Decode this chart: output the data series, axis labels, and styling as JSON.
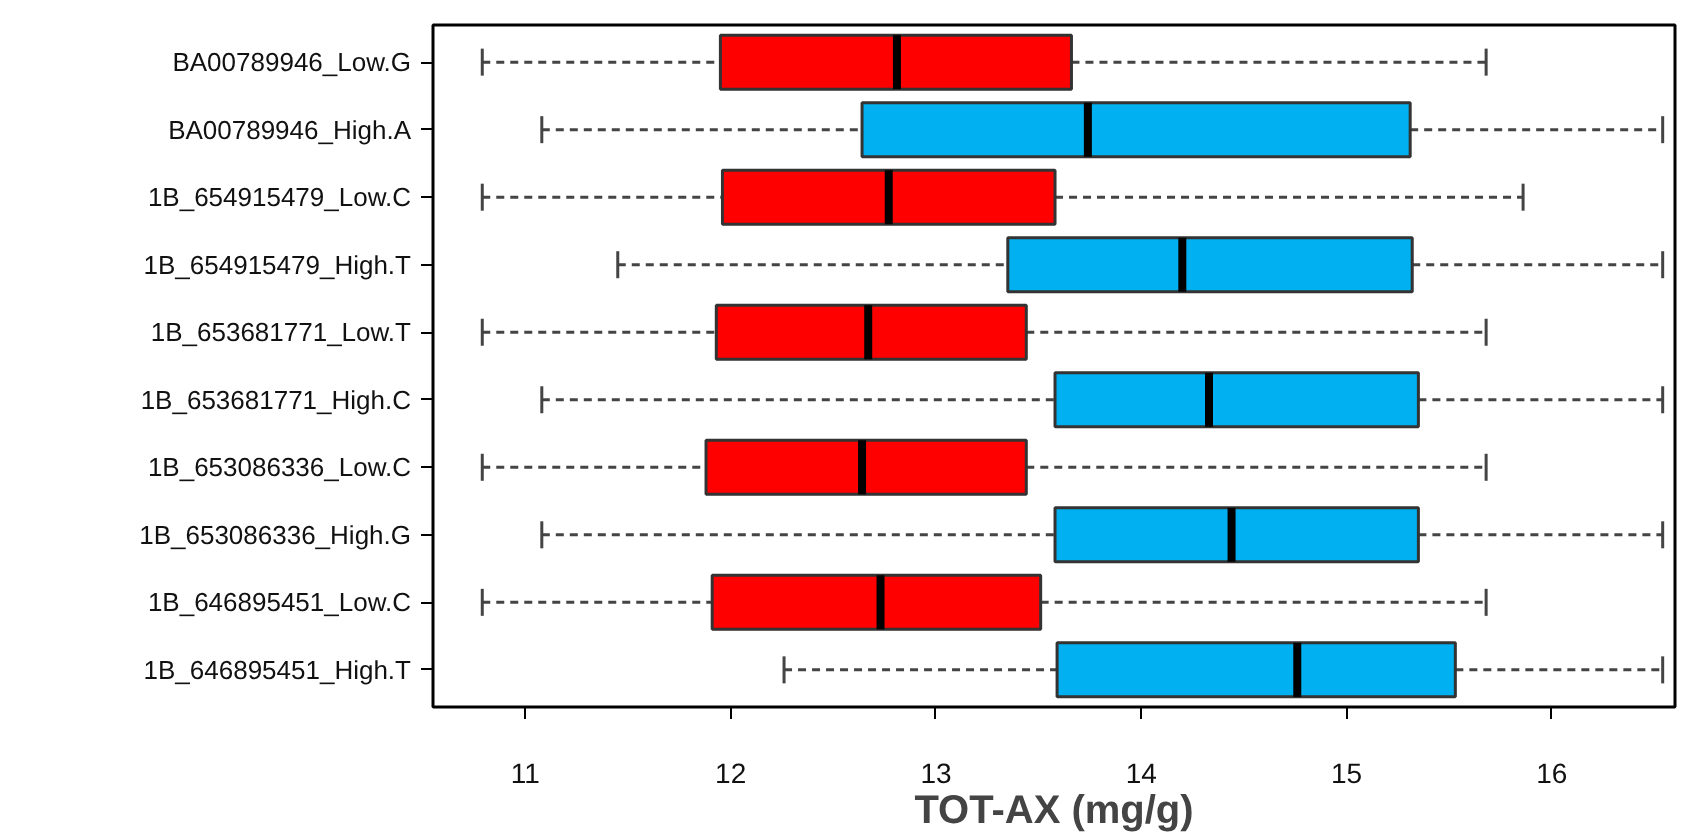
{
  "chart_data": {
    "type": "box",
    "orientation": "horizontal",
    "xlabel": "TOT-AX (mg/g)",
    "categories": [
      "BA00789946_Low.G",
      "BA00789946_High.A",
      "1B_654915479_Low.C",
      "1B_654915479_High.T",
      "1B_653681771_Low.T",
      "1B_653681771_High.C",
      "1B_653086336_Low.C",
      "1B_653086336_High.G",
      "1B_646895451_Low.C",
      "1B_646895451_High.T"
    ],
    "colors": [
      "#ff0000",
      "#00b0f0",
      "#ff0000",
      "#00b0f0",
      "#ff0000",
      "#00b0f0",
      "#ff0000",
      "#00b0f0",
      "#ff0000",
      "#00b0f0"
    ],
    "boxes": [
      {
        "low": 10.79,
        "q1": 11.95,
        "median": 12.81,
        "q3": 13.66,
        "high": 15.68
      },
      {
        "low": 11.08,
        "q1": 12.64,
        "median": 13.74,
        "q3": 15.31,
        "high": 16.54
      },
      {
        "low": 10.79,
        "q1": 11.96,
        "median": 12.77,
        "q3": 13.58,
        "high": 15.86
      },
      {
        "low": 11.45,
        "q1": 13.35,
        "median": 14.2,
        "q3": 15.32,
        "high": 16.54
      },
      {
        "low": 10.79,
        "q1": 11.93,
        "median": 12.67,
        "q3": 13.44,
        "high": 15.68
      },
      {
        "low": 11.08,
        "q1": 13.58,
        "median": 14.33,
        "q3": 15.35,
        "high": 16.54
      },
      {
        "low": 10.79,
        "q1": 11.88,
        "median": 12.64,
        "q3": 13.44,
        "high": 15.68
      },
      {
        "low": 11.08,
        "q1": 13.58,
        "median": 14.44,
        "q3": 15.35,
        "high": 16.54
      },
      {
        "low": 10.79,
        "q1": 11.91,
        "median": 12.73,
        "q3": 13.51,
        "high": 15.68
      },
      {
        "low": 12.26,
        "q1": 13.59,
        "median": 14.76,
        "q3": 15.53,
        "high": 16.54
      }
    ],
    "xlim": [
      10.55,
      16.6
    ],
    "xticks": [
      11,
      12,
      13,
      14,
      15,
      16
    ],
    "grid": false,
    "line_style": "dashed"
  }
}
